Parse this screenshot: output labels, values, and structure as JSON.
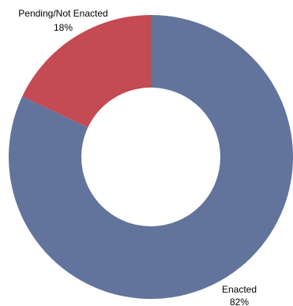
{
  "chart_data": {
    "type": "pie",
    "donut": true,
    "title": "",
    "categories": [
      "Enacted",
      "Pending/Not Enacted"
    ],
    "values": [
      82,
      18
    ],
    "value_labels": [
      "82%",
      "18%"
    ],
    "colors": [
      "#62749c",
      "#c44a53"
    ],
    "hole_color": "#ffffff",
    "legend": "none"
  }
}
